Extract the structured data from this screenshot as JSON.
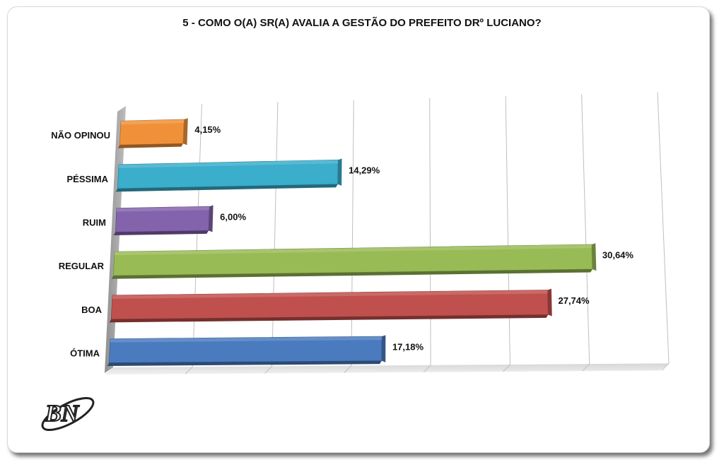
{
  "chart_data": {
    "type": "bar",
    "orientation": "horizontal",
    "title": "5 - COMO O(A) SR(A) AVALIA A GESTÃO DO PREFEITO DRº LUCIANO?",
    "categories": [
      "NÃO OPINOU",
      "PÉSSIMA",
      "RUIM",
      "REGULAR",
      "BOA",
      "ÓTIMA"
    ],
    "values": [
      4.15,
      14.29,
      6.0,
      30.64,
      27.74,
      17.18
    ],
    "value_labels": [
      "4,15%",
      "14,29%",
      "6,00%",
      "30,64%",
      "27,74%",
      "17,18%"
    ],
    "colors": [
      "#f0913a",
      "#3aaecb",
      "#8363ac",
      "#98bb55",
      "#c0504d",
      "#4a7bbf"
    ],
    "xlim": [
      0,
      35
    ],
    "grid": true,
    "legend": "none",
    "style": "3d"
  },
  "logo": {
    "text": "BN"
  }
}
